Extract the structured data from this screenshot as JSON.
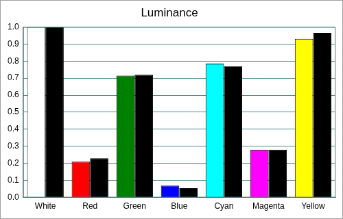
{
  "chart_data": {
    "type": "bar",
    "title": "Luminance",
    "categories": [
      "White",
      "Red",
      "Green",
      "Blue",
      "Cyan",
      "Magenta",
      "Yellow"
    ],
    "series": [
      {
        "colors": [
          "#ffffff",
          "#ff0000",
          "#008000",
          "#0000ff",
          "#00ffff",
          "#ff00ff",
          "#ffff00"
        ],
        "values": [
          1.0,
          0.21,
          0.715,
          0.07,
          0.785,
          0.28,
          0.93
        ]
      },
      {
        "color": "#000000",
        "values": [
          0.998,
          0.23,
          0.72,
          0.055,
          0.77,
          0.28,
          0.965
        ]
      }
    ],
    "ylim": [
      0,
      1
    ],
    "yticks": [
      {
        "value": 0,
        "label": "0.0"
      },
      0.1,
      0.2,
      0.3,
      0.4,
      0.5,
      0.6,
      0.7,
      0.8,
      0.9,
      {
        "value": 1,
        "label": "1.0"
      }
    ],
    "grid": true
  }
}
